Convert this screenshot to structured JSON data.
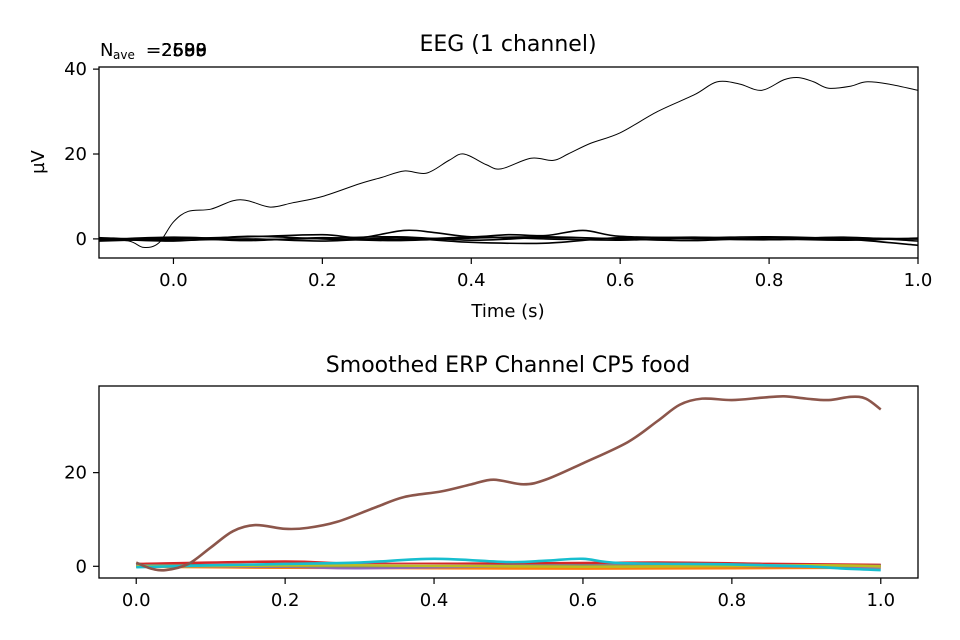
{
  "chart_data": [
    {
      "type": "line",
      "title": "EEG (1 channel)",
      "annotation": "N",
      "annotation_sub": "ave",
      "annotation_overlap": [
        "=2580",
        "=2599",
        "=2600",
        "=2633",
        "=2588"
      ],
      "xlabel": "Time (s)",
      "ylabel": "µV",
      "xlim": [
        -0.1,
        1.0
      ],
      "ylim": [
        -4.5,
        40.5
      ],
      "xticks": [
        0.0,
        0.2,
        0.4,
        0.6,
        0.8,
        1.0
      ],
      "xtick_labels": [
        "0.0",
        "0.2",
        "0.4",
        "0.6",
        "0.8",
        "1.0"
      ],
      "yticks": [
        0,
        20,
        40
      ],
      "ytick_labels": [
        "0",
        "20",
        "40"
      ],
      "grid": false,
      "series": [
        {
          "color": "#000000",
          "points": [
            [
              -0.1,
              0
            ],
            [
              -0.06,
              -0.5
            ],
            [
              -0.04,
              -2
            ],
            [
              -0.02,
              -1
            ],
            [
              0,
              4
            ],
            [
              0.02,
              6.5
            ],
            [
              0.05,
              7
            ],
            [
              0.08,
              9
            ],
            [
              0.1,
              9
            ],
            [
              0.13,
              7.5
            ],
            [
              0.16,
              8.5
            ],
            [
              0.2,
              10
            ],
            [
              0.25,
              13
            ],
            [
              0.28,
              14.5
            ],
            [
              0.31,
              16
            ],
            [
              0.34,
              15.5
            ],
            [
              0.37,
              18.5
            ],
            [
              0.39,
              20
            ],
            [
              0.42,
              17.5
            ],
            [
              0.44,
              16.5
            ],
            [
              0.48,
              19
            ],
            [
              0.51,
              18.5
            ],
            [
              0.53,
              20
            ],
            [
              0.56,
              22.5
            ],
            [
              0.6,
              25
            ],
            [
              0.65,
              30
            ],
            [
              0.7,
              34
            ],
            [
              0.73,
              37
            ],
            [
              0.76,
              36.5
            ],
            [
              0.79,
              35
            ],
            [
              0.82,
              37.5
            ],
            [
              0.84,
              38
            ],
            [
              0.86,
              37
            ],
            [
              0.88,
              35.5
            ],
            [
              0.91,
              36
            ],
            [
              0.93,
              37
            ],
            [
              0.96,
              36.5
            ],
            [
              1.0,
              35
            ]
          ]
        },
        {
          "color": "#000000",
          "points": [
            [
              -0.1,
              -0.5
            ],
            [
              0,
              0
            ],
            [
              0.1,
              0.5
            ],
            [
              0.2,
              1
            ],
            [
              0.25,
              0.3
            ],
            [
              0.31,
              2
            ],
            [
              0.35,
              1.5
            ],
            [
              0.4,
              0.5
            ],
            [
              0.45,
              1
            ],
            [
              0.5,
              0.8
            ],
            [
              0.55,
              2
            ],
            [
              0.6,
              0.6
            ],
            [
              0.7,
              0.3
            ],
            [
              0.8,
              0.5
            ],
            [
              0.9,
              0
            ],
            [
              1.0,
              -1.5
            ]
          ]
        },
        {
          "color": "#000000",
          "points": [
            [
              -0.1,
              0.3
            ],
            [
              0,
              -0.3
            ],
            [
              0.1,
              0
            ],
            [
              0.2,
              -0.5
            ],
            [
              0.3,
              0.2
            ],
            [
              0.4,
              -0.8
            ],
            [
              0.5,
              -1
            ],
            [
              0.6,
              0.3
            ],
            [
              0.7,
              0
            ],
            [
              0.8,
              -0.2
            ],
            [
              0.9,
              0.2
            ],
            [
              1.0,
              0
            ]
          ]
        },
        {
          "color": "#000000",
          "points": [
            [
              -0.1,
              -0.3
            ],
            [
              0,
              0.2
            ],
            [
              0.1,
              -0.4
            ],
            [
              0.2,
              0.3
            ],
            [
              0.3,
              -0.2
            ],
            [
              0.4,
              0.4
            ],
            [
              0.5,
              0
            ],
            [
              0.6,
              -0.3
            ],
            [
              0.7,
              0.2
            ],
            [
              0.8,
              0
            ],
            [
              0.9,
              -0.3
            ],
            [
              1.0,
              0.2
            ]
          ]
        },
        {
          "color": "#000000",
          "points": [
            [
              -0.1,
              0.1
            ],
            [
              0,
              -0.5
            ],
            [
              0.1,
              0.6
            ],
            [
              0.2,
              0
            ],
            [
              0.3,
              -0.4
            ],
            [
              0.4,
              0.2
            ],
            [
              0.5,
              0.5
            ],
            [
              0.6,
              0
            ],
            [
              0.7,
              -0.4
            ],
            [
              0.8,
              0.3
            ],
            [
              0.9,
              -0.1
            ],
            [
              1.0,
              0
            ]
          ]
        },
        {
          "color": "#000000",
          "points": [
            [
              -0.1,
              -0.2
            ],
            [
              0,
              0.4
            ],
            [
              0.1,
              -0.1
            ],
            [
              0.2,
              0.1
            ],
            [
              0.3,
              0.5
            ],
            [
              0.4,
              -0.3
            ],
            [
              0.5,
              0.3
            ],
            [
              0.6,
              0.1
            ],
            [
              0.7,
              0.4
            ],
            [
              0.8,
              -0.1
            ],
            [
              0.9,
              0.4
            ],
            [
              1.0,
              -0.5
            ]
          ]
        }
      ]
    },
    {
      "type": "line",
      "title": "Smoothed ERP Channel CP5 food",
      "xlim": [
        -0.05,
        1.05
      ],
      "ylim": [
        -2.5,
        38.5
      ],
      "xticks": [
        0.0,
        0.2,
        0.4,
        0.6,
        0.8,
        1.0
      ],
      "xtick_labels": [
        "0.0",
        "0.2",
        "0.4",
        "0.6",
        "0.8",
        "1.0"
      ],
      "yticks": [
        0,
        20
      ],
      "ytick_labels": [
        "0",
        "20"
      ],
      "grid": false,
      "series": [
        {
          "color": "#1f77b4",
          "points": [
            [
              0,
              0.3
            ],
            [
              0.2,
              0.2
            ],
            [
              0.4,
              -0.1
            ],
            [
              0.6,
              0.1
            ],
            [
              0.8,
              0
            ],
            [
              1.0,
              0.2
            ]
          ]
        },
        {
          "color": "#ff7f0e",
          "points": [
            [
              0,
              -0.1
            ],
            [
              0.2,
              -0.3
            ],
            [
              0.4,
              -0.4
            ],
            [
              0.6,
              -0.5
            ],
            [
              0.8,
              -0.4
            ],
            [
              1.0,
              -0.3
            ]
          ]
        },
        {
          "color": "#2ca02c",
          "points": [
            [
              0,
              0.2
            ],
            [
              0.2,
              0.1
            ],
            [
              0.4,
              0.2
            ],
            [
              0.6,
              0
            ],
            [
              0.8,
              0.3
            ],
            [
              1.0,
              0.1
            ]
          ]
        },
        {
          "color": "#d62728",
          "points": [
            [
              0,
              0.5
            ],
            [
              0.2,
              1
            ],
            [
              0.3,
              0.5
            ],
            [
              0.5,
              0.6
            ],
            [
              0.7,
              0.8
            ],
            [
              0.85,
              0.5
            ],
            [
              1.0,
              0.3
            ]
          ]
        },
        {
          "color": "#9467bd",
          "points": [
            [
              0,
              0.1
            ],
            [
              0.2,
              -0.1
            ],
            [
              0.3,
              -0.4
            ],
            [
              0.5,
              0
            ],
            [
              0.7,
              0.2
            ],
            [
              1.0,
              -0.2
            ]
          ]
        },
        {
          "color": "#e377c2",
          "points": [
            [
              0,
              0
            ],
            [
              0.25,
              0.3
            ],
            [
              0.5,
              0.1
            ],
            [
              0.75,
              0.3
            ],
            [
              1.0,
              0
            ]
          ]
        },
        {
          "color": "#7f7f7f",
          "points": [
            [
              0,
              0.2
            ],
            [
              0.3,
              0
            ],
            [
              0.6,
              0.2
            ],
            [
              0.9,
              0
            ],
            [
              1.0,
              0.1
            ]
          ]
        },
        {
          "color": "#bcbd22",
          "points": [
            [
              0,
              0
            ],
            [
              0.3,
              0.2
            ],
            [
              0.6,
              -0.1
            ],
            [
              0.9,
              0.2
            ],
            [
              1.0,
              0
            ]
          ]
        },
        {
          "color": "#17becf",
          "points": [
            [
              0,
              -0.2
            ],
            [
              0.1,
              0.2
            ],
            [
              0.2,
              0.5
            ],
            [
              0.3,
              0.8
            ],
            [
              0.4,
              1.6
            ],
            [
              0.5,
              0.9
            ],
            [
              0.55,
              1.2
            ],
            [
              0.6,
              1.6
            ],
            [
              0.65,
              0.7
            ],
            [
              0.8,
              0.4
            ],
            [
              0.9,
              0
            ],
            [
              0.95,
              -0.5
            ],
            [
              1.0,
              -0.8
            ]
          ]
        },
        {
          "color": "#8c564b",
          "points": [
            [
              0,
              0.8
            ],
            [
              0.02,
              -0.5
            ],
            [
              0.04,
              -0.8
            ],
            [
              0.07,
              0.5
            ],
            [
              0.1,
              4
            ],
            [
              0.13,
              7.5
            ],
            [
              0.16,
              8.8
            ],
            [
              0.2,
              8
            ],
            [
              0.23,
              8.2
            ],
            [
              0.27,
              9.5
            ],
            [
              0.32,
              12.5
            ],
            [
              0.36,
              14.8
            ],
            [
              0.41,
              16
            ],
            [
              0.45,
              17.5
            ],
            [
              0.48,
              18.5
            ],
            [
              0.52,
              17.5
            ],
            [
              0.55,
              18.5
            ],
            [
              0.6,
              22
            ],
            [
              0.66,
              26.5
            ],
            [
              0.7,
              31
            ],
            [
              0.73,
              34.5
            ],
            [
              0.76,
              35.8
            ],
            [
              0.8,
              35.5
            ],
            [
              0.84,
              36
            ],
            [
              0.87,
              36.3
            ],
            [
              0.9,
              35.8
            ],
            [
              0.93,
              35.5
            ],
            [
              0.96,
              36.2
            ],
            [
              0.98,
              35.8
            ],
            [
              1.0,
              33.5
            ]
          ]
        }
      ]
    }
  ]
}
